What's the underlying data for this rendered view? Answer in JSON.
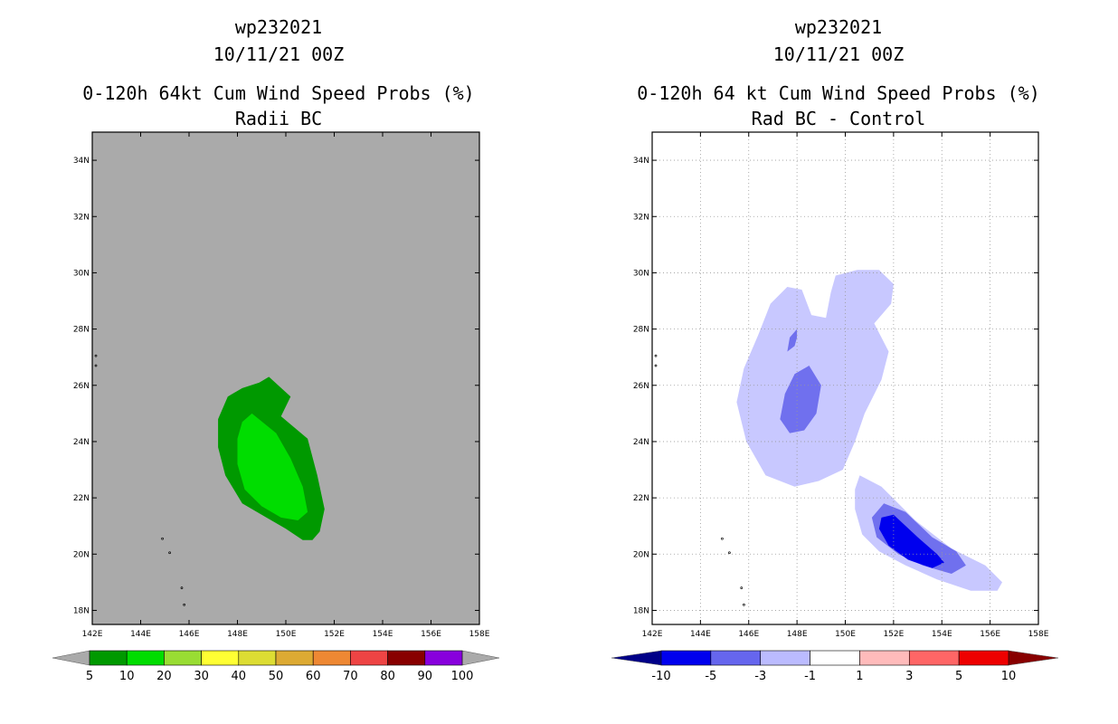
{
  "chart_data": [
    {
      "type": "contour-map",
      "storm_id": "wp232021",
      "valid_time": "10/11/21 00Z",
      "title": "0-120h 64kt Cum Wind Speed Probs (%)",
      "subtitle": "Radii BC",
      "x_ticks": [
        "142E",
        "144E",
        "146E",
        "148E",
        "150E",
        "152E",
        "154E",
        "156E",
        "158E"
      ],
      "y_ticks": [
        "18N",
        "20N",
        "22N",
        "24N",
        "26N",
        "28N",
        "30N",
        "32N",
        "34N"
      ],
      "xlim": [
        142,
        158
      ],
      "ylim": [
        17.5,
        35
      ],
      "grid": false,
      "colorbar": {
        "labels": [
          "5",
          "10",
          "20",
          "30",
          "40",
          "50",
          "60",
          "70",
          "80",
          "90",
          "100"
        ],
        "colors": [
          "#009900",
          "#00dd00",
          "#99dd33",
          "#ffff33",
          "#dddd33",
          "#ddaa33",
          "#ee8833",
          "#ee4444",
          "#880000",
          "#8800dd"
        ]
      },
      "contours": [
        {
          "level": "5-10%",
          "color": "#009900",
          "polygon": [
            [
              149.3,
              26.3
            ],
            [
              150.2,
              25.6
            ],
            [
              149.8,
              24.9
            ],
            [
              150.9,
              24.1
            ],
            [
              151.3,
              22.8
            ],
            [
              151.6,
              21.6
            ],
            [
              151.4,
              20.8
            ],
            [
              151.1,
              20.5
            ],
            [
              150.7,
              20.5
            ],
            [
              150.0,
              20.9
            ],
            [
              149.2,
              21.3
            ],
            [
              148.2,
              21.8
            ],
            [
              147.5,
              22.8
            ],
            [
              147.2,
              23.8
            ],
            [
              147.2,
              24.8
            ],
            [
              147.6,
              25.6
            ],
            [
              148.2,
              25.9
            ],
            [
              148.9,
              26.1
            ]
          ]
        },
        {
          "level": "10-20%",
          "color": "#00dd00",
          "polygon": [
            [
              148.6,
              25.0
            ],
            [
              149.6,
              24.3
            ],
            [
              150.2,
              23.4
            ],
            [
              150.7,
              22.4
            ],
            [
              150.9,
              21.5
            ],
            [
              150.5,
              21.2
            ],
            [
              149.8,
              21.3
            ],
            [
              149.0,
              21.7
            ],
            [
              148.3,
              22.3
            ],
            [
              148.0,
              23.2
            ],
            [
              148.0,
              24.1
            ],
            [
              148.2,
              24.7
            ]
          ]
        }
      ]
    },
    {
      "type": "contour-map",
      "storm_id": "wp232021",
      "valid_time": "10/11/21 00Z",
      "title": "0-120h 64 kt Cum Wind Speed Probs (%)",
      "subtitle": "Rad BC - Control",
      "x_ticks": [
        "142E",
        "144E",
        "146E",
        "148E",
        "150E",
        "152E",
        "154E",
        "156E",
        "158E"
      ],
      "y_ticks": [
        "18N",
        "20N",
        "22N",
        "24N",
        "26N",
        "28N",
        "30N",
        "32N",
        "34N"
      ],
      "xlim": [
        142,
        158
      ],
      "ylim": [
        17.5,
        35
      ],
      "grid": true,
      "colorbar": {
        "labels": [
          "-10",
          "-5",
          "-3",
          "-1",
          "1",
          "3",
          "5",
          "10"
        ],
        "colors": [
          "#0000ee",
          "#6666ee",
          "#bbbbff",
          "#ffffff",
          "#ffbbbb",
          "#ff6666",
          "#ee0000"
        ],
        "end_colors": [
          "#000088",
          "#880000"
        ]
      },
      "contours": [
        {
          "level": "-3 to -1",
          "color": "#c8c8ff",
          "polygon": [
            [
              149.6,
              29.9
            ],
            [
              150.5,
              30.1
            ],
            [
              151.4,
              30.1
            ],
            [
              152.0,
              29.6
            ],
            [
              151.9,
              28.9
            ],
            [
              151.2,
              28.2
            ],
            [
              151.8,
              27.2
            ],
            [
              151.5,
              26.2
            ],
            [
              150.8,
              25.0
            ],
            [
              150.4,
              24.0
            ],
            [
              149.9,
              23.0
            ],
            [
              148.9,
              22.6
            ],
            [
              147.9,
              22.4
            ],
            [
              146.7,
              22.8
            ],
            [
              145.9,
              24.0
            ],
            [
              145.5,
              25.4
            ],
            [
              145.8,
              26.6
            ],
            [
              146.4,
              27.8
            ],
            [
              146.9,
              28.9
            ],
            [
              147.6,
              29.5
            ],
            [
              148.2,
              29.4
            ],
            [
              148.6,
              28.5
            ],
            [
              149.2,
              28.4
            ],
            [
              149.4,
              29.3
            ]
          ]
        },
        {
          "level": "-5 to -3",
          "color": "#7070ee",
          "polygon": [
            [
              148.5,
              26.7
            ],
            [
              149.0,
              26.0
            ],
            [
              148.8,
              25.0
            ],
            [
              148.3,
              24.4
            ],
            [
              147.7,
              24.3
            ],
            [
              147.3,
              24.8
            ],
            [
              147.5,
              25.7
            ],
            [
              147.9,
              26.4
            ]
          ]
        },
        {
          "level": "-5 to -3 b",
          "color": "#7070ee",
          "polygon": [
            [
              148.0,
              28.0
            ],
            [
              147.7,
              27.7
            ],
            [
              147.6,
              27.2
            ],
            [
              147.9,
              27.4
            ],
            [
              148.0,
              27.7
            ]
          ]
        },
        {
          "level": "-3 to -1 b",
          "color": "#c8c8ff",
          "polygon": [
            [
              150.6,
              22.8
            ],
            [
              151.5,
              22.4
            ],
            [
              152.9,
              21.2
            ],
            [
              154.4,
              20.2
            ],
            [
              155.8,
              19.6
            ],
            [
              156.5,
              19.0
            ],
            [
              156.3,
              18.7
            ],
            [
              155.2,
              18.7
            ],
            [
              153.8,
              19.1
            ],
            [
              152.5,
              19.6
            ],
            [
              151.4,
              20.1
            ],
            [
              150.7,
              20.7
            ],
            [
              150.4,
              21.6
            ],
            [
              150.4,
              22.3
            ]
          ]
        },
        {
          "level": "-5 to -3 c",
          "color": "#7070ee",
          "polygon": [
            [
              151.6,
              21.8
            ],
            [
              152.5,
              21.5
            ],
            [
              153.6,
              20.6
            ],
            [
              154.6,
              20.1
            ],
            [
              155.0,
              19.6
            ],
            [
              154.4,
              19.3
            ],
            [
              153.2,
              19.6
            ],
            [
              152.2,
              20.0
            ],
            [
              151.3,
              20.6
            ],
            [
              151.1,
              21.3
            ]
          ]
        },
        {
          "level": "-10 to -5",
          "color": "#0000ee",
          "polygon": [
            [
              152.0,
              21.4
            ],
            [
              153.0,
              20.6
            ],
            [
              153.8,
              20.0
            ],
            [
              154.1,
              19.7
            ],
            [
              153.6,
              19.5
            ],
            [
              152.6,
              19.8
            ],
            [
              151.8,
              20.3
            ],
            [
              151.4,
              20.9
            ],
            [
              151.5,
              21.3
            ]
          ]
        }
      ]
    }
  ]
}
